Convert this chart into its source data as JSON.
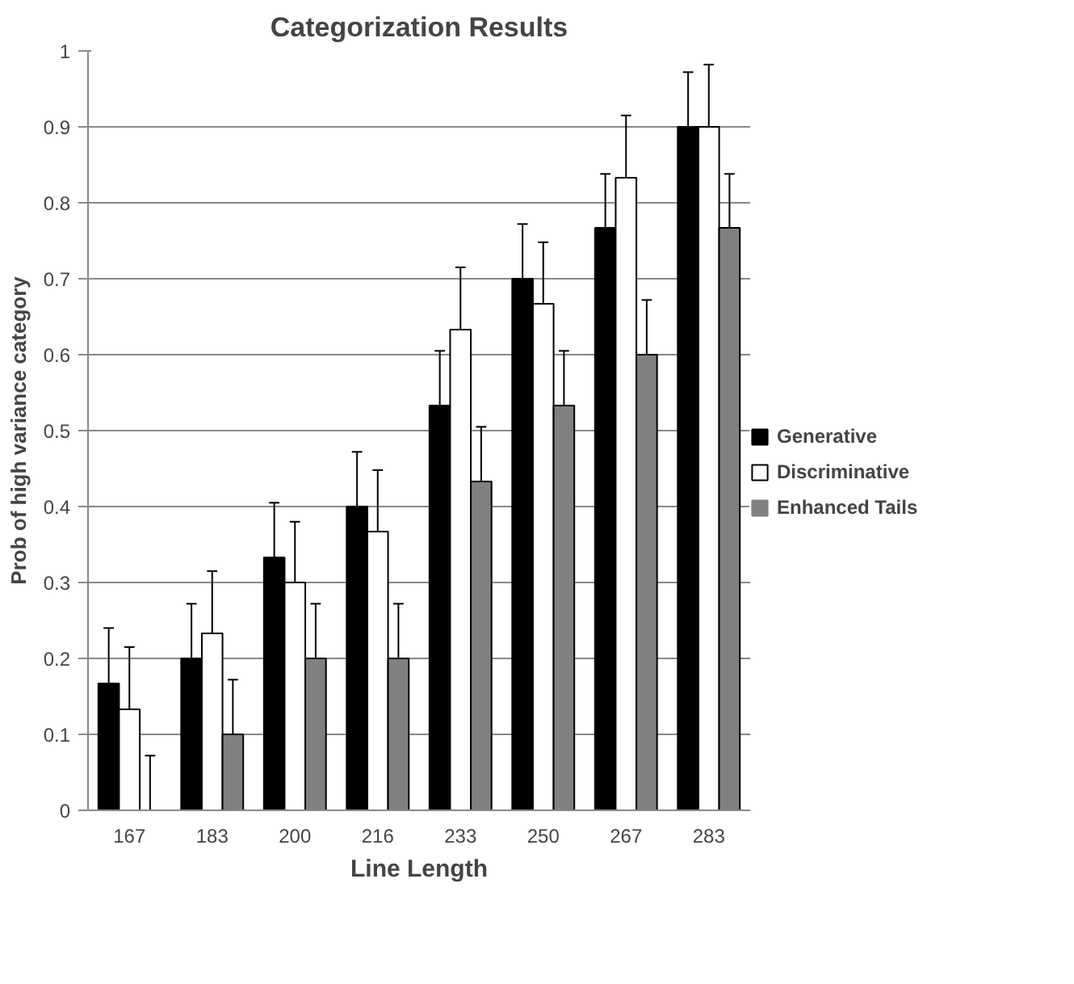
{
  "chart_data": {
    "type": "bar",
    "title": "Categorization Results",
    "xlabel": "Line Length",
    "ylabel": "Prob of high variance category",
    "categories": [
      "167",
      "183",
      "200",
      "216",
      "233",
      "250",
      "267",
      "283"
    ],
    "series": [
      {
        "name": "Generative",
        "color": "#000000",
        "values": [
          0.167,
          0.2,
          0.333,
          0.4,
          0.533,
          0.7,
          0.767,
          0.9
        ],
        "errors": [
          [
            0.167,
            0.24
          ],
          [
            0.2,
            0.272
          ],
          [
            0.333,
            0.405
          ],
          [
            0.4,
            0.472
          ],
          [
            0.533,
            0.605
          ],
          [
            0.7,
            0.772
          ],
          [
            0.767,
            0.838
          ],
          [
            0.9,
            0.972
          ]
        ]
      },
      {
        "name": "Discriminative",
        "color": "#ffffff",
        "values": [
          0.133,
          0.233,
          0.3,
          0.367,
          0.633,
          0.667,
          0.833,
          0.9
        ],
        "errors": [
          [
            0.133,
            0.215
          ],
          [
            0.233,
            0.315
          ],
          [
            0.3,
            0.38
          ],
          [
            0.367,
            0.448
          ],
          [
            0.633,
            0.715
          ],
          [
            0.667,
            0.748
          ],
          [
            0.833,
            0.915
          ],
          [
            0.9,
            0.982
          ]
        ]
      },
      {
        "name": "Enhanced Tails",
        "color": "#808080",
        "values": [
          0,
          0.1,
          0.2,
          0.2,
          0.433,
          0.533,
          0.6,
          0.767
        ],
        "errors": [
          [
            0,
            0.072
          ],
          [
            0.1,
            0.172
          ],
          [
            0.2,
            0.272
          ],
          [
            0.2,
            0.272
          ],
          [
            0.433,
            0.505
          ],
          [
            0.533,
            0.605
          ],
          [
            0.6,
            0.672
          ],
          [
            0.767,
            0.838
          ]
        ]
      }
    ],
    "ylim": [
      0,
      1
    ],
    "yticks": [
      0,
      0.1,
      0.2,
      0.3,
      0.4,
      0.5,
      0.6,
      0.7,
      0.8,
      0.9,
      1
    ],
    "grid": "y",
    "legend": "right"
  }
}
